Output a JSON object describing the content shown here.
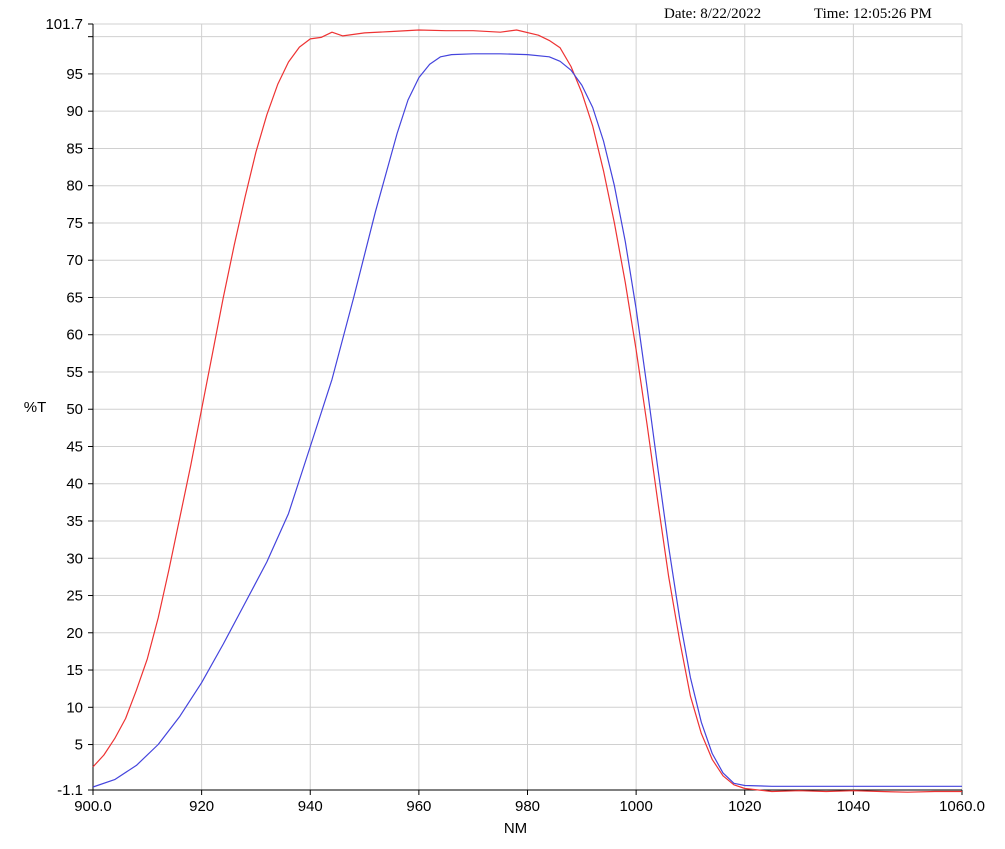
{
  "header": {
    "date_label": "Date:",
    "date": "8/22/2022",
    "time_label": "Time:",
    "time": "12:05:26 PM"
  },
  "chart_data": {
    "type": "line",
    "xlabel": "NM",
    "ylabel": "%T",
    "xlim": [
      900,
      1060
    ],
    "ylim": [
      -1.1,
      101.7
    ],
    "x_ticks": [
      900,
      920,
      940,
      960,
      980,
      1000,
      1020,
      1040,
      1060
    ],
    "x_tick_labels": [
      "900.0",
      "920",
      "940",
      "960",
      "980",
      "1000",
      "1020",
      "1040",
      "1060.0"
    ],
    "y_ticks": [
      -1.1,
      5,
      10,
      15,
      20,
      25,
      30,
      35,
      40,
      45,
      50,
      55,
      60,
      65,
      70,
      75,
      80,
      85,
      90,
      95,
      101.7
    ],
    "y_tick_labels": [
      "-1.1",
      "5",
      "10",
      "15",
      "20",
      "25",
      "30",
      "35",
      "40",
      "45",
      "50",
      "55",
      "60",
      "65",
      "70",
      "75",
      "80",
      "85",
      "90",
      "95",
      "101.7"
    ],
    "extra_gridline": 100,
    "grid": true,
    "series": [
      {
        "color": "#ee3333",
        "x": [
          900,
          902,
          904,
          906,
          908,
          910,
          912,
          914,
          916,
          918,
          920,
          922,
          924,
          926,
          928,
          930,
          932,
          934,
          936,
          938,
          940,
          942,
          944,
          946,
          950,
          955,
          960,
          965,
          970,
          975,
          978,
          982,
          984,
          986,
          988,
          990,
          992,
          994,
          996,
          998,
          1000,
          1002,
          1004,
          1006,
          1008,
          1010,
          1012,
          1014,
          1016,
          1018,
          1020,
          1025,
          1030,
          1035,
          1040,
          1045,
          1050,
          1055,
          1060
        ],
        "y": [
          2,
          3.6,
          5.8,
          8.5,
          12.3,
          16.5,
          22,
          28.5,
          35.5,
          42.5,
          50,
          57.5,
          65,
          72,
          78.5,
          84.5,
          89.5,
          93.6,
          96.6,
          98.6,
          99.7,
          99.9,
          100.6,
          100.1,
          100.5,
          100.7,
          100.9,
          100.8,
          100.8,
          100.6,
          100.9,
          100.2,
          99.5,
          98.5,
          96,
          92.5,
          88,
          82,
          75,
          67,
          58,
          48,
          37.5,
          27.5,
          19,
          11.5,
          6.5,
          3,
          0.8,
          -0.4,
          -0.9,
          -1.3,
          -1.2,
          -1.3,
          -1.2,
          -1.3,
          -1.4,
          -1.3,
          -1.3
        ]
      },
      {
        "color": "#4444dd",
        "x": [
          900,
          904,
          908,
          912,
          916,
          920,
          924,
          928,
          932,
          936,
          940,
          944,
          948,
          952,
          956,
          958,
          960,
          962,
          964,
          966,
          970,
          975,
          980,
          984,
          986,
          988,
          990,
          992,
          994,
          996,
          998,
          1000,
          1002,
          1004,
          1006,
          1008,
          1010,
          1012,
          1014,
          1016,
          1018,
          1020,
          1025,
          1030,
          1040,
          1050,
          1060
        ],
        "y": [
          -0.7,
          0.3,
          2.2,
          5,
          8.8,
          13.3,
          18.5,
          24,
          29.5,
          36,
          45,
          54,
          65,
          76.5,
          87,
          91.5,
          94.5,
          96.3,
          97.3,
          97.6,
          97.7,
          97.7,
          97.6,
          97.3,
          96.7,
          95.5,
          93.5,
          90.5,
          86,
          80,
          72.5,
          63.5,
          53,
          42,
          31.5,
          22,
          14,
          8,
          3.8,
          1.2,
          -0.2,
          -0.5,
          -0.6,
          -0.6,
          -0.6,
          -0.6,
          -0.6
        ]
      }
    ]
  }
}
